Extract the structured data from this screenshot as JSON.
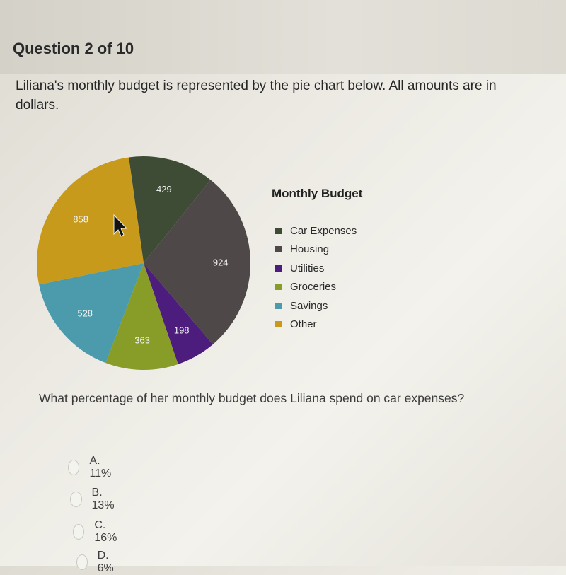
{
  "question": {
    "number_label": "Question 2 of 10",
    "text": "Liliana's monthly budget is represented by the pie chart below. All amounts are in dollars.",
    "prompt": "What percentage of her monthly budget does Liliana spend on car expenses?"
  },
  "chart_data": {
    "type": "pie",
    "title": "Monthly Budget",
    "legend_position": "right",
    "slices": [
      {
        "name": "Car Expenses",
        "value": 429,
        "color": "#3e4c36"
      },
      {
        "name": "Housing",
        "value": 924,
        "color": "#4f4849"
      },
      {
        "name": "Utilities",
        "value": 198,
        "color": "#4d1d7d"
      },
      {
        "name": "Groceries",
        "value": 363,
        "color": "#889c28"
      },
      {
        "name": "Savings",
        "value": 528,
        "color": "#4b9bac"
      },
      {
        "name": "Other",
        "value": 858,
        "color": "#c79a1c"
      }
    ]
  },
  "options": [
    {
      "label": "A. 11%"
    },
    {
      "label": "B. 13%"
    },
    {
      "label": "C. 16%"
    },
    {
      "label": "D. 6%"
    }
  ]
}
